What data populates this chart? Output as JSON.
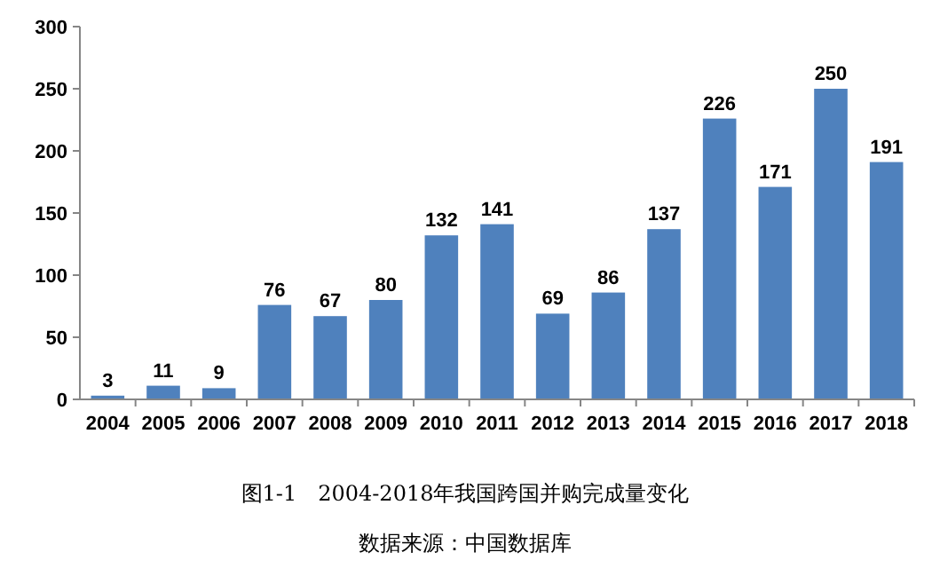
{
  "chart_data": {
    "type": "bar",
    "title": "图1-1　2004-2018年我国跨国并购完成量变化",
    "categories": [
      "2004",
      "2005",
      "2006",
      "2007",
      "2008",
      "2009",
      "2010",
      "2011",
      "2012",
      "2013",
      "2014",
      "2015",
      "2016",
      "2017",
      "2018"
    ],
    "values": [
      3,
      11,
      9,
      76,
      67,
      80,
      132,
      141,
      69,
      86,
      137,
      226,
      171,
      250,
      191
    ],
    "color": "#4f81bd",
    "ylim": [
      0,
      300
    ],
    "yticks": [
      0,
      50,
      100,
      150,
      200,
      250,
      300
    ],
    "data_labels": true,
    "grid": false,
    "annotations": [
      "数据来源：中国数据库"
    ]
  }
}
